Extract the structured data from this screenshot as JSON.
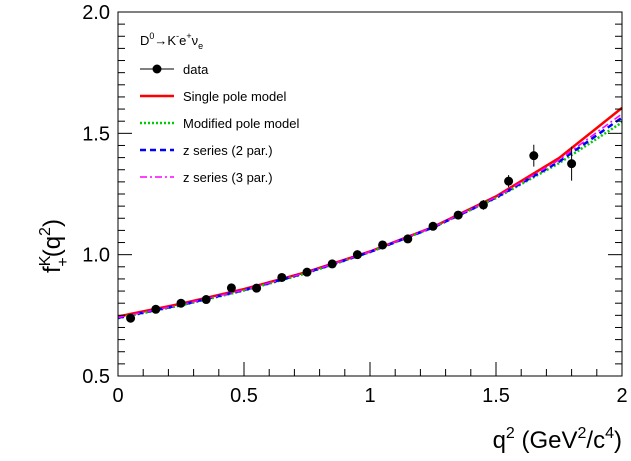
{
  "chart_data": {
    "type": "line",
    "title": "",
    "xlabel": {
      "base": "q",
      "sup1": "2",
      "mid": " (GeV",
      "sup2": "2",
      "mid2": "/c",
      "sup3": "4",
      "end": ")"
    },
    "ylabel": {
      "base": "f",
      "sup": "K",
      "sub": "+",
      "arg_open": "(q",
      "arg_sup": "2",
      "arg_close": ")"
    },
    "xlim": [
      0,
      2
    ],
    "ylim": [
      0.5,
      2.0
    ],
    "x_ticks": [
      "0",
      "0.5",
      "1",
      "1.5",
      "2"
    ],
    "y_ticks": [
      "0.5",
      "1.0",
      "1.5",
      "2.0"
    ],
    "grid": false,
    "legend_position": "top-left",
    "legend": {
      "decay": {
        "d": "D",
        "d_sup": "0",
        "arrow": "→K",
        "k_sup": "-",
        "e": "e",
        "e_sup": "+",
        "nu": "ν",
        "nu_sub": "e"
      },
      "entries": [
        "data",
        "Single pole model",
        "Modified pole model",
        "z series (2 par.)",
        "z series (3 par.)"
      ]
    },
    "series": [
      {
        "name": "data",
        "style": "points",
        "color": "#000000",
        "points": [
          {
            "x": 0.05,
            "y": 0.738,
            "err": 0.01
          },
          {
            "x": 0.15,
            "y": 0.775,
            "err": 0.01
          },
          {
            "x": 0.25,
            "y": 0.8,
            "err": 0.01
          },
          {
            "x": 0.35,
            "y": 0.815,
            "err": 0.01
          },
          {
            "x": 0.45,
            "y": 0.863,
            "err": 0.01
          },
          {
            "x": 0.55,
            "y": 0.862,
            "err": 0.01
          },
          {
            "x": 0.65,
            "y": 0.906,
            "err": 0.01
          },
          {
            "x": 0.75,
            "y": 0.928,
            "err": 0.01
          },
          {
            "x": 0.85,
            "y": 0.962,
            "err": 0.01
          },
          {
            "x": 0.95,
            "y": 1.0,
            "err": 0.01
          },
          {
            "x": 1.05,
            "y": 1.04,
            "err": 0.01
          },
          {
            "x": 1.15,
            "y": 1.065,
            "err": 0.01
          },
          {
            "x": 1.25,
            "y": 1.117,
            "err": 0.01
          },
          {
            "x": 1.35,
            "y": 1.163,
            "err": 0.01
          },
          {
            "x": 1.45,
            "y": 1.205,
            "err": 0.02
          },
          {
            "x": 1.55,
            "y": 1.303,
            "err": 0.025
          },
          {
            "x": 1.65,
            "y": 1.408,
            "err": 0.045
          },
          {
            "x": 1.8,
            "y": 1.375,
            "err": 0.07
          }
        ]
      },
      {
        "name": "Single pole model",
        "style": "solid",
        "color": "#ff0000",
        "x": [
          0,
          0.25,
          0.5,
          0.75,
          1.0,
          1.25,
          1.5,
          1.75,
          2.0
        ],
        "y": [
          0.745,
          0.798,
          0.858,
          0.929,
          1.013,
          1.114,
          1.24,
          1.398,
          1.605
        ]
      },
      {
        "name": "Modified pole model",
        "style": "dotted",
        "color": "#00cc00",
        "x": [
          0,
          0.25,
          0.5,
          0.75,
          1.0,
          1.25,
          1.5,
          1.75,
          2.0
        ],
        "y": [
          0.738,
          0.791,
          0.852,
          0.924,
          1.01,
          1.112,
          1.233,
          1.377,
          1.545
        ]
      },
      {
        "name": "z series (2 par.)",
        "style": "dashed",
        "color": "#0000ff",
        "x": [
          0,
          0.25,
          0.5,
          0.75,
          1.0,
          1.25,
          1.5,
          1.75,
          2.0
        ],
        "y": [
          0.74,
          0.793,
          0.854,
          0.926,
          1.011,
          1.112,
          1.235,
          1.383,
          1.565
        ]
      },
      {
        "name": "z series (3 par.)",
        "style": "dashdot",
        "color": "#ff00ff",
        "x": [
          0,
          0.25,
          0.5,
          0.75,
          1.0,
          1.25,
          1.5,
          1.75,
          2.0
        ],
        "y": [
          0.741,
          0.794,
          0.855,
          0.927,
          1.012,
          1.113,
          1.237,
          1.39,
          1.58
        ]
      }
    ]
  }
}
